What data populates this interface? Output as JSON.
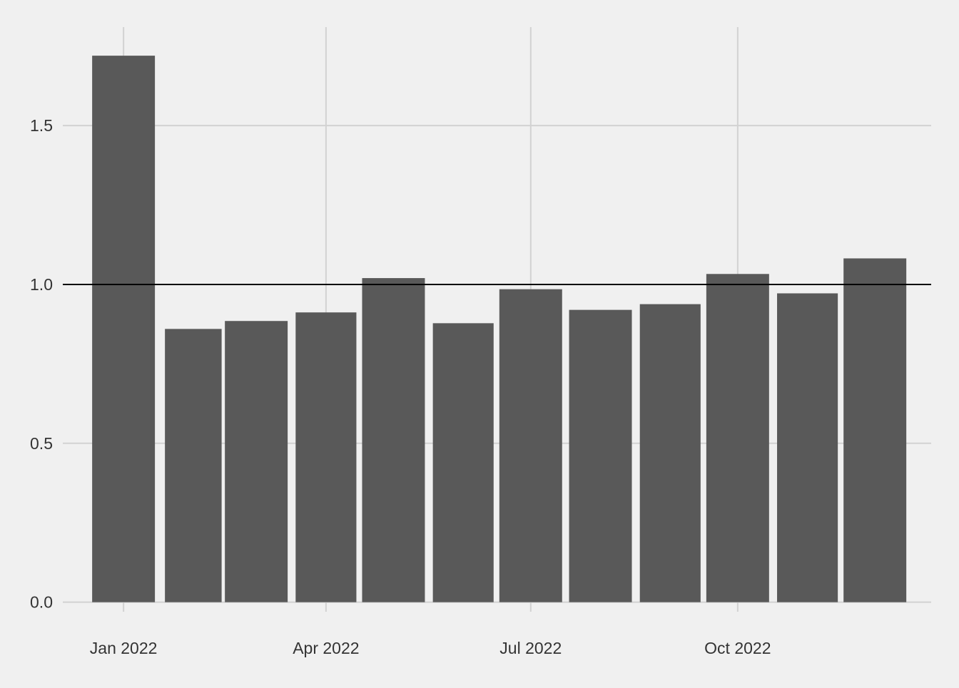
{
  "chart_data": {
    "type": "bar",
    "title": "",
    "xlabel": "",
    "ylabel": "",
    "x": [
      "2022-01-01",
      "2022-02-01",
      "2022-03-01",
      "2022-04-01",
      "2022-05-01",
      "2022-06-01",
      "2022-07-01",
      "2022-08-01",
      "2022-09-01",
      "2022-10-01",
      "2022-11-01",
      "2022-12-01"
    ],
    "values": [
      1.72,
      0.86,
      0.885,
      0.912,
      1.02,
      0.878,
      0.985,
      0.92,
      0.938,
      1.033,
      0.972,
      1.082
    ],
    "ylim": [
      -0.03,
      1.81
    ],
    "xlim": [
      "2021-12-05",
      "2022-12-26"
    ],
    "yticks": [
      0.0,
      0.5,
      1.0,
      1.5
    ],
    "ytick_labels": [
      "0.0",
      "0.5",
      "1.0",
      "1.5"
    ],
    "xticks": [
      "2022-01-01",
      "2022-04-01",
      "2022-07-01",
      "2022-10-01"
    ],
    "xtick_labels": [
      "Jan 2022",
      "Apr 2022",
      "Jul 2022",
      "Oct 2022"
    ],
    "reference_line": {
      "y": 1.0,
      "color": "#000000"
    },
    "grid": true,
    "legend": "none",
    "colors": {
      "background": "#f0f0f0",
      "bar": "#595959",
      "grid": "#d2d2d2",
      "text": "#333333"
    }
  }
}
